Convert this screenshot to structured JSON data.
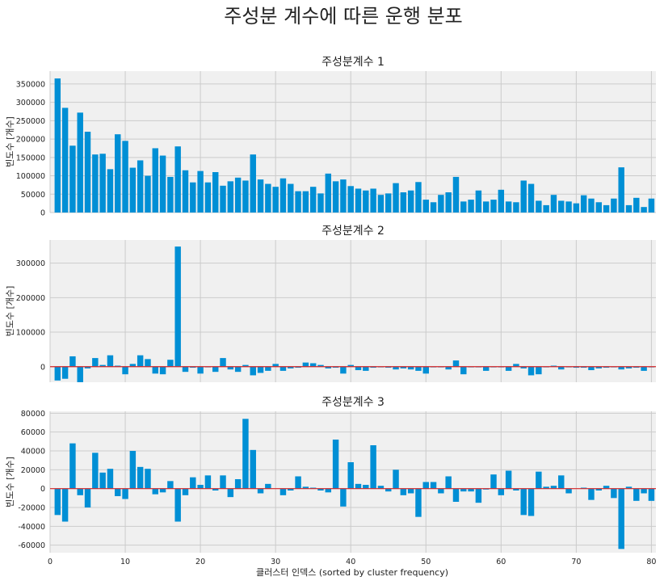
{
  "suptitle": "주성분 계수에 따른 운행 분포",
  "xlabel": "클러스터 인덱스 (sorted by cluster frequency)",
  "x_ticks": [
    0,
    10,
    20,
    30,
    40,
    50,
    60,
    70,
    80
  ],
  "colors": {
    "bar": "#008fd5",
    "zero_line": "#d62728",
    "panel_bg": "#f0f0f0",
    "grid": "#cbcbcb",
    "text": "#222222"
  },
  "chart_data": [
    {
      "type": "bar",
      "title": "주성분계수 1",
      "ylabel": "빈도수 [개수]",
      "ylim": [
        0,
        385000
      ],
      "xlim": [
        0,
        80.6
      ],
      "yticks": [
        0,
        50000,
        100000,
        150000,
        200000,
        250000,
        300000,
        350000
      ],
      "show_xtick_labels": false,
      "x": [
        1,
        2,
        3,
        4,
        5,
        6,
        7,
        8,
        9,
        10,
        11,
        12,
        13,
        14,
        15,
        16,
        17,
        18,
        19,
        20,
        21,
        22,
        23,
        24,
        25,
        26,
        27,
        28,
        29,
        30,
        31,
        32,
        33,
        34,
        35,
        36,
        37,
        38,
        39,
        40,
        41,
        42,
        43,
        44,
        45,
        46,
        47,
        48,
        49,
        50,
        51,
        52,
        53,
        54,
        55,
        56,
        57,
        58,
        59,
        60,
        61,
        62,
        63,
        64,
        65,
        66,
        67,
        68,
        69,
        70,
        71,
        72,
        73,
        74,
        75,
        76,
        77,
        78,
        79,
        80
      ],
      "values": [
        365000,
        285000,
        182000,
        272000,
        220000,
        158000,
        160000,
        118000,
        213000,
        195000,
        122000,
        142000,
        100000,
        175000,
        155000,
        97000,
        180000,
        115000,
        82000,
        113000,
        82000,
        110000,
        73000,
        85000,
        95000,
        87000,
        158000,
        90000,
        78000,
        70000,
        93000,
        78000,
        58000,
        58000,
        70000,
        52000,
        106000,
        85000,
        90000,
        72000,
        65000,
        60000,
        65000,
        48000,
        52000,
        80000,
        55000,
        60000,
        83000,
        35000,
        28000,
        48000,
        55000,
        97000,
        30000,
        35000,
        60000,
        30000,
        35000,
        62000,
        30000,
        28000,
        87000,
        78000,
        32000,
        20000,
        48000,
        32000,
        30000,
        25000,
        47000,
        38000,
        28000,
        20000,
        38000,
        123000,
        20000,
        40000,
        15000,
        38000
      ],
      "zero_line": false
    },
    {
      "type": "bar",
      "title": "주성분계수 2",
      "ylabel": "빈도수 [개수]",
      "ylim": [
        -45000,
        367000
      ],
      "xlim": [
        0,
        80.6
      ],
      "yticks": [
        0,
        100000,
        200000,
        300000
      ],
      "show_xtick_labels": false,
      "x": [
        1,
        2,
        3,
        4,
        5,
        6,
        7,
        8,
        9,
        10,
        11,
        12,
        13,
        14,
        15,
        16,
        17,
        18,
        19,
        20,
        21,
        22,
        23,
        24,
        25,
        26,
        27,
        28,
        29,
        30,
        31,
        32,
        33,
        34,
        35,
        36,
        37,
        38,
        39,
        40,
        41,
        42,
        43,
        44,
        45,
        46,
        47,
        48,
        49,
        50,
        51,
        52,
        53,
        54,
        55,
        56,
        57,
        58,
        59,
        60,
        61,
        62,
        63,
        64,
        65,
        66,
        67,
        68,
        69,
        70,
        71,
        72,
        73,
        74,
        75,
        76,
        77,
        78,
        79,
        80
      ],
      "values": [
        -40000,
        -35000,
        30000,
        -45000,
        -5000,
        25000,
        5000,
        33000,
        3000,
        -22000,
        8000,
        33000,
        22000,
        -20000,
        -22000,
        20000,
        348000,
        -15000,
        -3000,
        -20000,
        -2000,
        -15000,
        25000,
        -8000,
        -15000,
        5000,
        -25000,
        -18000,
        -12000,
        8000,
        -12000,
        -5000,
        -3000,
        12000,
        10000,
        5000,
        -5000,
        -3000,
        -20000,
        5000,
        -10000,
        -12000,
        -3000,
        -2000,
        -3000,
        -8000,
        -5000,
        -8000,
        -12000,
        -20000,
        -2000,
        -2000,
        -8000,
        18000,
        -22000,
        -2000,
        -2000,
        -12000,
        -2000,
        -2000,
        -12000,
        8000,
        -5000,
        -25000,
        -22000,
        -2000,
        3000,
        -8000,
        -2000,
        -3000,
        -3000,
        -10000,
        -5000,
        -3000,
        -2000,
        -8000,
        -5000,
        -3000,
        -12000,
        -2000
      ],
      "zero_line": true
    },
    {
      "type": "bar",
      "title": "주성분계수 3",
      "ylabel": "빈도수 [개수]",
      "ylim": [
        -68000,
        82000
      ],
      "xlim": [
        0,
        80.6
      ],
      "yticks": [
        -60000,
        -40000,
        -20000,
        0,
        20000,
        40000,
        60000,
        80000
      ],
      "show_xtick_labels": true,
      "x": [
        1,
        2,
        3,
        4,
        5,
        6,
        7,
        8,
        9,
        10,
        11,
        12,
        13,
        14,
        15,
        16,
        17,
        18,
        19,
        20,
        21,
        22,
        23,
        24,
        25,
        26,
        27,
        28,
        29,
        30,
        31,
        32,
        33,
        34,
        35,
        36,
        37,
        38,
        39,
        40,
        41,
        42,
        43,
        44,
        45,
        46,
        47,
        48,
        49,
        50,
        51,
        52,
        53,
        54,
        55,
        56,
        57,
        58,
        59,
        60,
        61,
        62,
        63,
        64,
        65,
        66,
        67,
        68,
        69,
        70,
        71,
        72,
        73,
        74,
        75,
        76,
        77,
        78,
        79,
        80
      ],
      "values": [
        -28000,
        -35000,
        48000,
        -7000,
        -20000,
        38000,
        17000,
        21000,
        -8000,
        -11000,
        40000,
        23000,
        21000,
        -6000,
        -4000,
        8000,
        -35000,
        -7000,
        12000,
        4000,
        14000,
        -2000,
        14000,
        -9000,
        10000,
        74000,
        41000,
        -5000,
        5000,
        0,
        -7000,
        -2000,
        13000,
        2000,
        1000,
        -2000,
        -4000,
        52000,
        -19000,
        28000,
        5000,
        4000,
        46000,
        3000,
        -3000,
        20000,
        -7000,
        -5000,
        -30000,
        7000,
        7000,
        -5000,
        13000,
        -14000,
        -3000,
        -3000,
        -15000,
        -1000,
        15000,
        -7000,
        19000,
        -2000,
        -28000,
        -29000,
        18000,
        2000,
        3000,
        14000,
        -5000,
        0,
        1000,
        -12000,
        -2000,
        3000,
        -10000,
        -64000,
        2000,
        -13000,
        -5000,
        -13000
      ],
      "zero_line": true
    }
  ]
}
